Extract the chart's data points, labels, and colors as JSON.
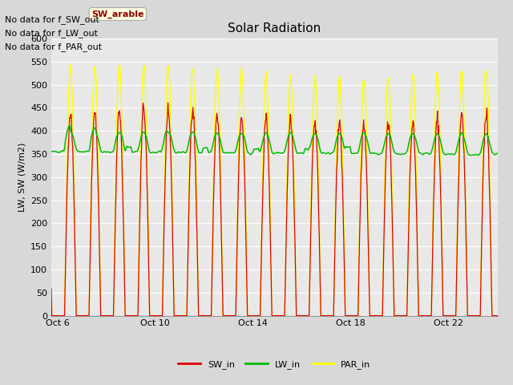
{
  "title": "Solar Radiation",
  "ylabel": "LW, SW (W/m2)",
  "ylim": [
    0,
    600
  ],
  "yticks": [
    0,
    50,
    100,
    150,
    200,
    250,
    300,
    350,
    400,
    450,
    500,
    550,
    600
  ],
  "xtick_labels": [
    "Oct 6",
    "Oct 10",
    "Oct 14",
    "Oct 18",
    "Oct 22"
  ],
  "xtick_days": [
    6,
    10,
    14,
    18,
    22
  ],
  "bg_color": "#d8d8d8",
  "plot_bg_color": "#e8e8e8",
  "grid_color": "#ffffff",
  "sw_color": "#dd0000",
  "lw_color": "#00bb00",
  "par_color": "#ffff00",
  "legend_labels": [
    "SW_in",
    "LW_in",
    "PAR_in"
  ],
  "no_data_texts": [
    "No data for f_SW_out",
    "No data for f_LW_out",
    "No data for f_PAR_out"
  ],
  "tooltip_text": "SW_arable",
  "title_fontsize": 11,
  "axis_fontsize": 8,
  "legend_fontsize": 8,
  "nodata_fontsize": 8
}
